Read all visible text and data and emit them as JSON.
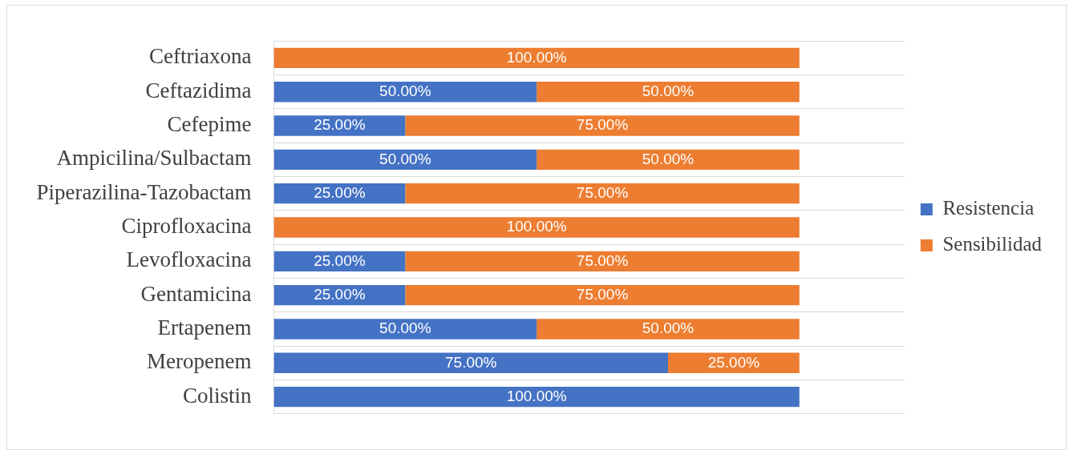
{
  "chart_data": {
    "type": "bar",
    "orientation": "horizontal",
    "stacked": true,
    "categories": [
      "Ceftriaxona",
      "Ceftazidima",
      "Cefepime",
      "Ampicilina/Sulbactam",
      "Piperazilina-Tazobactam",
      "Ciprofloxacina",
      "Levofloxacina",
      "Gentamicina",
      "Ertapenem",
      "Meropenem",
      "Colistin"
    ],
    "series": [
      {
        "name": "Resistencia",
        "color": "#4472c4",
        "values": [
          0,
          50,
          25,
          50,
          25,
          0,
          25,
          25,
          50,
          75,
          100
        ],
        "value_labels": [
          null,
          "50.00%",
          "25.00%",
          "50.00%",
          "25.00%",
          null,
          "25.00%",
          "25.00%",
          "50.00%",
          "75.00%",
          "100.00%"
        ]
      },
      {
        "name": "Sensibilidad",
        "color": "#ed7d31",
        "values": [
          100,
          50,
          75,
          50,
          75,
          100,
          75,
          75,
          50,
          25,
          0
        ],
        "value_labels": [
          "100.00%",
          "50.00%",
          "75.00%",
          "50.00%",
          "75.00%",
          "100.00%",
          "75.00%",
          "75.00%",
          "50.00%",
          "25.00%",
          null
        ]
      }
    ],
    "xlim": [
      0,
      120
    ],
    "tick_labels": "y",
    "grid": "y",
    "legend": "right"
  }
}
